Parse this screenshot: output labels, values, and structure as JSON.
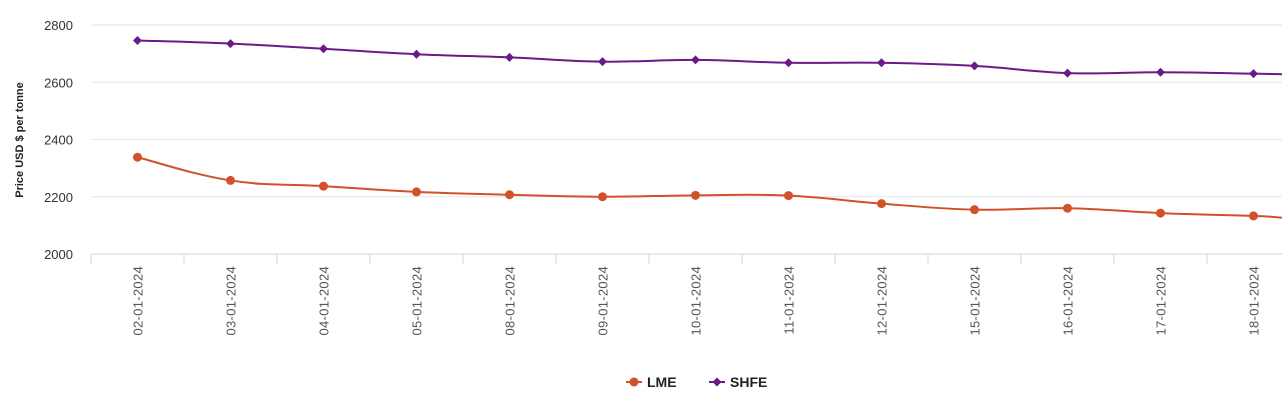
{
  "chart_data": {
    "type": "line",
    "title": "",
    "xlabel": "",
    "ylabel": "Price USD $ per tonne",
    "ylim": [
      2000,
      2800
    ],
    "yticks": [
      2000,
      2200,
      2400,
      2600,
      2800
    ],
    "categories": [
      "02-01-2024",
      "03-01-2024",
      "04-01-2024",
      "05-01-2024",
      "08-01-2024",
      "09-01-2024",
      "10-01-2024",
      "11-01-2024",
      "12-01-2024",
      "15-01-2024",
      "16-01-2024",
      "17-01-2024",
      "18-01-2024"
    ],
    "series": [
      {
        "name": "LME",
        "color": "#d1522a",
        "marker": "circle",
        "values": [
          2338,
          2257,
          2237,
          2217,
          2207,
          2200,
          2205,
          2204,
          2176,
          2155,
          2160,
          2143,
          2133
        ],
        "end_value": 2127
      },
      {
        "name": "SHFE",
        "color": "#6b1a8a",
        "marker": "diamond",
        "values": [
          2746,
          2735,
          2717,
          2698,
          2687,
          2672,
          2678,
          2668,
          2668,
          2657,
          2632,
          2635,
          2630
        ],
        "end_value": 2628
      }
    ],
    "grid": true,
    "legend_position": "bottom-center"
  }
}
